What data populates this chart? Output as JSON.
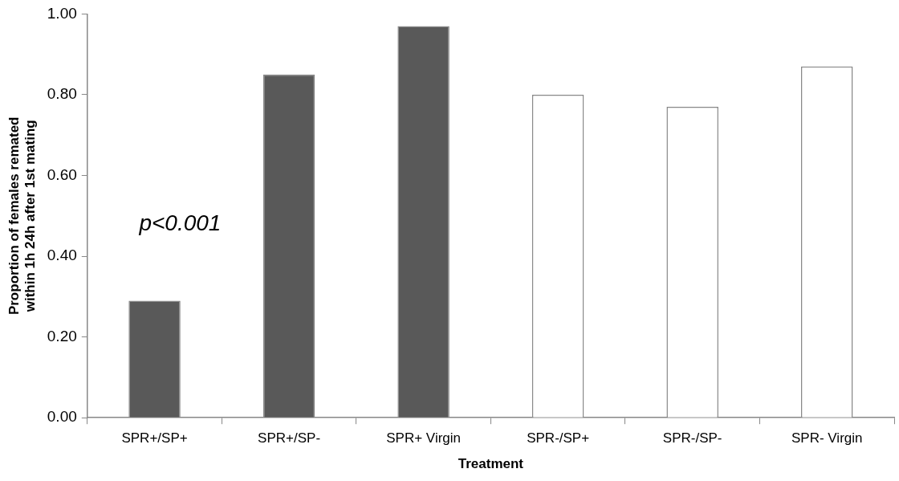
{
  "chart_data": {
    "type": "bar",
    "xlabel": "Treatment",
    "ylabel": "Proportion of females remated within 1h 24h after 1st mating",
    "categories": [
      "SPR+/SP+",
      "SPR+/SP-",
      "SPR+ Virgin",
      "SPR-/SP+",
      "SPR-/SP-",
      "SPR- Virgin"
    ],
    "values": [
      0.29,
      0.85,
      0.97,
      0.8,
      0.77,
      0.87
    ],
    "colors": [
      "#595959",
      "#595959",
      "#595959",
      "#ffffff",
      "#ffffff",
      "#ffffff"
    ],
    "ylim": [
      0,
      1
    ],
    "yticks": [
      {
        "value": 0,
        "label": "0.00"
      },
      {
        "value": 0.2,
        "label": "0.20"
      },
      {
        "value": 0.4,
        "label": "0.40"
      },
      {
        "value": 0.6,
        "label": "0.60"
      },
      {
        "value": 0.8,
        "label": "0.80"
      },
      {
        "value": 1,
        "label": "1.00"
      }
    ],
    "annotations": [
      "p<0.001"
    ]
  }
}
